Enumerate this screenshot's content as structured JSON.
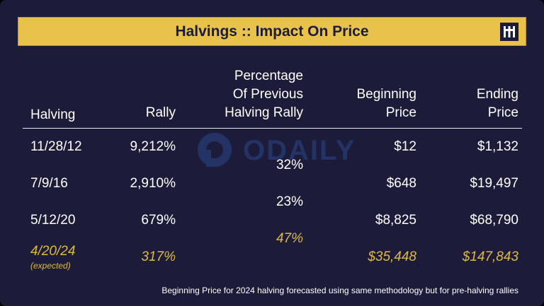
{
  "title": "Halvings :: Impact On Price",
  "watermark_text": "ODAILY",
  "headers": {
    "halving": "Halving",
    "rally": "Rally",
    "pct_line1": "Percentage",
    "pct_line2": "Of Previous",
    "pct_line3": "Halving Rally",
    "begin_line1": "Beginning",
    "begin_line2": "Price",
    "end_line1": "Ending",
    "end_line2": "Price"
  },
  "rows": [
    {
      "halving": "11/28/12",
      "rally": "9,212%",
      "begin": "$12",
      "end": "$1,132"
    },
    {
      "halving": "7/9/16",
      "rally": "2,910%",
      "begin": "$648",
      "end": "$19,497"
    },
    {
      "halving": "5/12/20",
      "rally": "679%",
      "begin": "$8,825",
      "end": "$68,790"
    }
  ],
  "percentages": [
    "32%",
    "23%",
    "47%"
  ],
  "expected": {
    "halving": "4/20/24",
    "note": "(expected)",
    "rally": "317%",
    "begin": "$35,448",
    "end": "$147,843"
  },
  "footnote": "Beginning Price for 2024 halving forecasted using same methodology but for pre-halving rallies",
  "colors": {
    "background": "#1c1c3a",
    "title_bar": "#e8c24a",
    "accent_gold": "#e0b93c",
    "text": "#ffffff"
  }
}
